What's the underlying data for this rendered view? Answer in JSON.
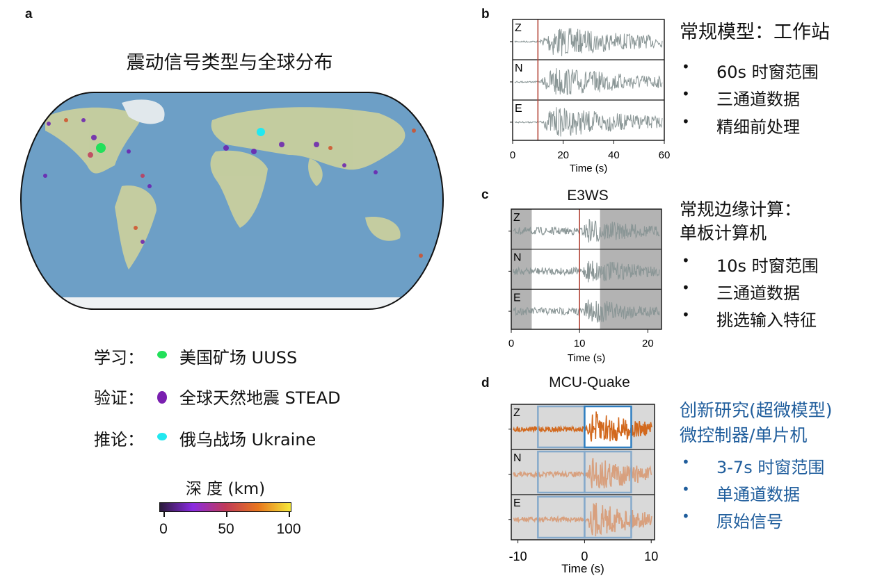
{
  "panel_a": {
    "label": "a",
    "title": "震动信号类型与全球分布",
    "legend": [
      {
        "prefix": "学习：",
        "text": "美国矿场 UUSS",
        "color": "#22e05a"
      },
      {
        "prefix": "验证：",
        "text": "全球天然地震 STEAD",
        "color": "#7a1fb0"
      },
      {
        "prefix": "推论：",
        "text": "俄乌战场 Ukraine",
        "color": "#22e8f0"
      }
    ],
    "colorbar": {
      "title": "深 度 (km)",
      "ticks": [
        "0",
        "50",
        "100"
      ],
      "range": [
        0,
        100
      ],
      "colormap": "plasma-like"
    }
  },
  "panel_b": {
    "label": "b",
    "channels": [
      "Z",
      "N",
      "E"
    ],
    "xlim": [
      0,
      60
    ],
    "ticks": [
      "0",
      "20",
      "40",
      "60"
    ],
    "xlabel": "Time (s)",
    "pick_time": 10,
    "heading": "常规模型：工作站",
    "bullets": [
      "60s 时窗范围",
      "三通道数据",
      "精细前处理"
    ]
  },
  "panel_c": {
    "label": "c",
    "title": "E3WS",
    "channels": [
      "Z",
      "N",
      "E"
    ],
    "xlim": [
      0,
      22
    ],
    "ticks": [
      "0",
      "10",
      "20"
    ],
    "xlabel": "Time (s)",
    "pick_time": 10,
    "shaded": [
      [
        0,
        3
      ],
      [
        13,
        22
      ]
    ],
    "heading_lines": [
      "常规边缘计算：",
      "单板计算机"
    ],
    "bullets": [
      "10s 时窗范围",
      "三通道数据",
      "挑选输入特征"
    ]
  },
  "panel_d": {
    "label": "d",
    "title": "MCU-Quake",
    "channels": [
      "Z",
      "N",
      "E"
    ],
    "xlim": [
      -11,
      10.5
    ],
    "ticks": [
      "-10",
      "0",
      "10"
    ],
    "xlabel": "Time (s)",
    "windows": [
      [
        -7,
        0
      ],
      [
        0,
        7
      ]
    ],
    "heading_lines": [
      "创新研究(超微模型)",
      "微控制器/单片机"
    ],
    "bullets": [
      "3-7s 时窗范围",
      "单通道数据",
      "原始信号"
    ],
    "accent": "#1f5d9c"
  },
  "bullet_char": "•"
}
